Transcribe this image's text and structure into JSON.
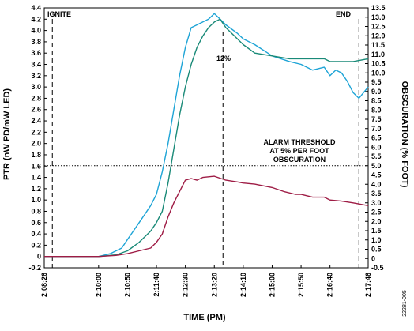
{
  "chart_data": {
    "type": "line",
    "xlabel": "TIME (PM)",
    "ylabel": "PTR (nW PD/mW LED)",
    "y2label": "OBSCURATION (% FOOT)",
    "xlim": [
      "2:08:26",
      "2:17:46"
    ],
    "ylim": [
      -0.2,
      4.4
    ],
    "y2lim": [
      -0.5,
      13.5
    ],
    "x_ticks": [
      "2:08:26",
      "2:10:00",
      "2:10:50",
      "2:11:40",
      "2:12:30",
      "2:13:20",
      "2:14:10",
      "2:15:00",
      "2:15:50",
      "2:16:40",
      "2:17:46"
    ],
    "y_ticks": [
      "-0.2",
      "0",
      "0.2",
      "0.4",
      "0.6",
      "0.8",
      "1.0",
      "1.2",
      "1.4",
      "1.6",
      "1.8",
      "2.0",
      "2.2",
      "2.4",
      "2.6",
      "2.8",
      "3.0",
      "3.2",
      "3.4",
      "3.6",
      "3.8",
      "4.0",
      "4.2",
      "4.4"
    ],
    "y2_ticks": [
      "-0.5",
      "0",
      "0.5",
      "1.0",
      "1.5",
      "2.0",
      "2.5",
      "3.0",
      "3.5",
      "4.0",
      "4.5",
      "5.0",
      "5.5",
      "6.0",
      "6.5",
      "7.0",
      "7.5",
      "8.0",
      "8.5",
      "9.0",
      "9.5",
      "10.0",
      "10.5",
      "11.0",
      "11.5",
      "12.0",
      "12.5",
      "13.0",
      "13.5"
    ],
    "grid": false,
    "series": [
      {
        "color": "#1ea4d6",
        "axis": "left",
        "x": [
          "2:08:26",
          "2:09:00",
          "2:09:30",
          "2:10:00",
          "2:10:20",
          "2:10:40",
          "2:10:50",
          "2:11:00",
          "2:11:10",
          "2:11:20",
          "2:11:30",
          "2:11:40",
          "2:11:50",
          "2:12:00",
          "2:12:10",
          "2:12:20",
          "2:12:30",
          "2:12:40",
          "2:12:50",
          "2:13:00",
          "2:13:10",
          "2:13:20",
          "2:13:30",
          "2:13:40",
          "2:14:00",
          "2:14:10",
          "2:14:30",
          "2:15:00",
          "2:15:30",
          "2:15:50",
          "2:16:10",
          "2:16:30",
          "2:16:40",
          "2:16:50",
          "2:17:00",
          "2:17:10",
          "2:17:20",
          "2:17:30",
          "2:17:46"
        ],
        "values": [
          0.0,
          0.0,
          0.0,
          0.0,
          0.05,
          0.15,
          0.3,
          0.45,
          0.6,
          0.75,
          0.9,
          1.1,
          1.5,
          2.0,
          2.6,
          3.2,
          3.7,
          4.05,
          4.1,
          4.15,
          4.2,
          4.3,
          4.2,
          4.1,
          3.95,
          3.85,
          3.75,
          3.55,
          3.45,
          3.4,
          3.3,
          3.35,
          3.2,
          3.3,
          3.25,
          3.1,
          2.9,
          2.8,
          3.0
        ]
      },
      {
        "color": "#1a8a78",
        "axis": "left",
        "x": [
          "2:08:26",
          "2:09:00",
          "2:09:30",
          "2:10:00",
          "2:10:30",
          "2:10:50",
          "2:11:10",
          "2:11:30",
          "2:11:40",
          "2:11:50",
          "2:12:00",
          "2:12:10",
          "2:12:20",
          "2:12:30",
          "2:12:40",
          "2:12:50",
          "2:13:00",
          "2:13:10",
          "2:13:20",
          "2:13:30",
          "2:13:40",
          "2:14:00",
          "2:14:10",
          "2:14:30",
          "2:15:00",
          "2:15:30",
          "2:15:50",
          "2:16:10",
          "2:16:30",
          "2:16:40",
          "2:17:00",
          "2:17:20",
          "2:17:46"
        ],
        "values": [
          0.0,
          0.0,
          0.0,
          0.0,
          0.03,
          0.1,
          0.25,
          0.45,
          0.6,
          0.8,
          1.3,
          1.9,
          2.5,
          3.0,
          3.4,
          3.7,
          3.9,
          4.05,
          4.15,
          4.2,
          4.05,
          3.85,
          3.75,
          3.6,
          3.55,
          3.5,
          3.5,
          3.5,
          3.5,
          3.45,
          3.45,
          3.45,
          3.5
        ]
      },
      {
        "color": "#9e1c45",
        "axis": "left",
        "x": [
          "2:08:26",
          "2:09:00",
          "2:09:30",
          "2:10:00",
          "2:10:30",
          "2:10:50",
          "2:11:10",
          "2:11:30",
          "2:11:40",
          "2:11:50",
          "2:12:00",
          "2:12:10",
          "2:12:20",
          "2:12:30",
          "2:12:40",
          "2:12:50",
          "2:13:00",
          "2:13:20",
          "2:13:40",
          "2:14:00",
          "2:14:10",
          "2:14:30",
          "2:15:00",
          "2:15:20",
          "2:15:40",
          "2:15:50",
          "2:16:10",
          "2:16:30",
          "2:16:40",
          "2:17:00",
          "2:17:20",
          "2:17:46"
        ],
        "values": [
          0.0,
          0.0,
          0.0,
          0.0,
          0.02,
          0.05,
          0.1,
          0.15,
          0.25,
          0.4,
          0.7,
          0.95,
          1.15,
          1.35,
          1.38,
          1.35,
          1.4,
          1.42,
          1.35,
          1.32,
          1.3,
          1.28,
          1.22,
          1.15,
          1.1,
          1.1,
          1.05,
          1.05,
          1.0,
          0.98,
          0.95,
          0.9
        ]
      }
    ],
    "annotations": {
      "ignite": "IGNITE",
      "end": "END",
      "peak": "12%",
      "alarm_line1": "ALARM THRESHOLD",
      "alarm_line2": "AT 5% PER FOOT",
      "alarm_line3": "OBSCURATION"
    },
    "figure_id": "22281-005"
  }
}
